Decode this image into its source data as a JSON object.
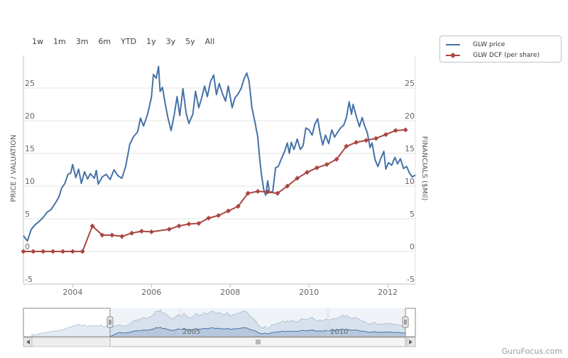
{
  "range_selector": {
    "buttons": [
      "1w",
      "1m",
      "3m",
      "6m",
      "YTD",
      "1y",
      "3y",
      "5y",
      "All"
    ]
  },
  "legend": {
    "items": [
      {
        "label": "GLW price",
        "color": "#4572a7",
        "marker": "none"
      },
      {
        "label": "GLW DCF (per share)",
        "color": "#aa4643",
        "marker": "diamond"
      }
    ]
  },
  "credit": "GuruFocus.com",
  "navigator": {
    "year_labels": [
      "2005",
      "2010"
    ]
  },
  "chart_data": {
    "type": "line",
    "title": "",
    "ylabel": "PRICE / VALUATION",
    "y2label": "FINANCIALS ($Mil)",
    "xlim": [
      2002.75,
      2012.7
    ],
    "ylim": [
      -5,
      30
    ],
    "y_ticks": [
      -5,
      0,
      5,
      10,
      15,
      20,
      25
    ],
    "x_ticks": [
      2004,
      2006,
      2008,
      2010,
      2012
    ],
    "grid": true,
    "legend_position": "top-right",
    "series": [
      {
        "name": "GLW price",
        "color": "#4572a7",
        "points": [
          [
            2002.75,
            2.4
          ],
          [
            2002.85,
            1.6
          ],
          [
            2002.95,
            3.4
          ],
          [
            2003.05,
            4.1
          ],
          [
            2003.15,
            4.6
          ],
          [
            2003.25,
            5.2
          ],
          [
            2003.35,
            6.0
          ],
          [
            2003.45,
            6.4
          ],
          [
            2003.55,
            7.3
          ],
          [
            2003.65,
            8.3
          ],
          [
            2003.72,
            9.7
          ],
          [
            2003.8,
            10.4
          ],
          [
            2003.88,
            11.8
          ],
          [
            2003.95,
            12.0
          ],
          [
            2004.0,
            13.3
          ],
          [
            2004.08,
            11.3
          ],
          [
            2004.15,
            12.6
          ],
          [
            2004.22,
            10.4
          ],
          [
            2004.3,
            12.2
          ],
          [
            2004.38,
            11.1
          ],
          [
            2004.45,
            11.9
          ],
          [
            2004.55,
            11.2
          ],
          [
            2004.6,
            12.4
          ],
          [
            2004.65,
            10.3
          ],
          [
            2004.75,
            11.4
          ],
          [
            2004.85,
            11.8
          ],
          [
            2004.95,
            11.0
          ],
          [
            2005.05,
            12.5
          ],
          [
            2005.15,
            11.6
          ],
          [
            2005.25,
            11.2
          ],
          [
            2005.35,
            13.1
          ],
          [
            2005.45,
            16.4
          ],
          [
            2005.55,
            17.6
          ],
          [
            2005.65,
            18.3
          ],
          [
            2005.72,
            20.4
          ],
          [
            2005.8,
            19.2
          ],
          [
            2005.9,
            21.0
          ],
          [
            2006.0,
            23.6
          ],
          [
            2006.05,
            27.1
          ],
          [
            2006.12,
            26.5
          ],
          [
            2006.18,
            28.3
          ],
          [
            2006.22,
            24.5
          ],
          [
            2006.28,
            25.1
          ],
          [
            2006.35,
            22.6
          ],
          [
            2006.42,
            20.4
          ],
          [
            2006.5,
            18.5
          ],
          [
            2006.58,
            21.0
          ],
          [
            2006.65,
            23.7
          ],
          [
            2006.72,
            20.8
          ],
          [
            2006.8,
            24.9
          ],
          [
            2006.88,
            21.2
          ],
          [
            2006.95,
            19.6
          ],
          [
            2007.05,
            21.0
          ],
          [
            2007.12,
            24.5
          ],
          [
            2007.2,
            22.0
          ],
          [
            2007.28,
            23.6
          ],
          [
            2007.35,
            25.3
          ],
          [
            2007.42,
            23.7
          ],
          [
            2007.5,
            26.0
          ],
          [
            2007.58,
            27.0
          ],
          [
            2007.65,
            24.0
          ],
          [
            2007.72,
            25.7
          ],
          [
            2007.8,
            24.2
          ],
          [
            2007.88,
            23.0
          ],
          [
            2007.95,
            25.3
          ],
          [
            2008.05,
            22.0
          ],
          [
            2008.12,
            23.5
          ],
          [
            2008.2,
            24.1
          ],
          [
            2008.28,
            25.0
          ],
          [
            2008.35,
            26.4
          ],
          [
            2008.42,
            27.3
          ],
          [
            2008.48,
            26.0
          ],
          [
            2008.55,
            22.0
          ],
          [
            2008.62,
            20.0
          ],
          [
            2008.7,
            17.5
          ],
          [
            2008.75,
            14.0
          ],
          [
            2008.8,
            11.5
          ],
          [
            2008.85,
            9.5
          ],
          [
            2008.9,
            8.6
          ],
          [
            2008.95,
            10.8
          ],
          [
            2009.0,
            9.0
          ],
          [
            2009.08,
            9.2
          ],
          [
            2009.15,
            12.8
          ],
          [
            2009.22,
            13.0
          ],
          [
            2009.3,
            14.2
          ],
          [
            2009.38,
            15.3
          ],
          [
            2009.45,
            16.6
          ],
          [
            2009.5,
            15.0
          ],
          [
            2009.55,
            16.7
          ],
          [
            2009.62,
            15.6
          ],
          [
            2009.7,
            17.2
          ],
          [
            2009.78,
            15.6
          ],
          [
            2009.85,
            16.2
          ],
          [
            2009.92,
            18.9
          ],
          [
            2010.0,
            18.6
          ],
          [
            2010.08,
            17.8
          ],
          [
            2010.15,
            19.5
          ],
          [
            2010.22,
            20.3
          ],
          [
            2010.28,
            18.2
          ],
          [
            2010.35,
            16.3
          ],
          [
            2010.42,
            17.8
          ],
          [
            2010.5,
            16.5
          ],
          [
            2010.58,
            18.6
          ],
          [
            2010.65,
            17.5
          ],
          [
            2010.72,
            18.2
          ],
          [
            2010.8,
            18.9
          ],
          [
            2010.88,
            19.3
          ],
          [
            2010.95,
            20.5
          ],
          [
            2011.02,
            22.9
          ],
          [
            2011.08,
            21.0
          ],
          [
            2011.12,
            22.5
          ],
          [
            2011.2,
            20.7
          ],
          [
            2011.28,
            19.1
          ],
          [
            2011.35,
            20.5
          ],
          [
            2011.4,
            19.4
          ],
          [
            2011.48,
            18.2
          ],
          [
            2011.55,
            15.9
          ],
          [
            2011.6,
            16.6
          ],
          [
            2011.68,
            14.0
          ],
          [
            2011.75,
            13.0
          ],
          [
            2011.82,
            14.2
          ],
          [
            2011.9,
            15.3
          ],
          [
            2011.95,
            12.6
          ],
          [
            2012.02,
            13.6
          ],
          [
            2012.1,
            13.2
          ],
          [
            2012.18,
            14.4
          ],
          [
            2012.25,
            13.4
          ],
          [
            2012.32,
            14.2
          ],
          [
            2012.4,
            12.7
          ],
          [
            2012.48,
            13.0
          ],
          [
            2012.55,
            12.0
          ],
          [
            2012.62,
            11.4
          ],
          [
            2012.7,
            11.7
          ]
        ]
      },
      {
        "name": "GLW DCF (per share)",
        "color": "#aa4643",
        "marker": "diamond",
        "points": [
          [
            2002.75,
            0.0
          ],
          [
            2003.0,
            0.0
          ],
          [
            2003.25,
            0.0
          ],
          [
            2003.5,
            0.0
          ],
          [
            2003.75,
            0.0
          ],
          [
            2004.0,
            0.0
          ],
          [
            2004.25,
            0.0
          ],
          [
            2004.5,
            3.9
          ],
          [
            2004.75,
            2.5
          ],
          [
            2005.0,
            2.5
          ],
          [
            2005.25,
            2.3
          ],
          [
            2005.5,
            2.8
          ],
          [
            2005.75,
            3.1
          ],
          [
            2006.0,
            3.0
          ],
          [
            2006.45,
            3.4
          ],
          [
            2006.7,
            3.9
          ],
          [
            2006.95,
            4.2
          ],
          [
            2007.2,
            4.3
          ],
          [
            2007.45,
            5.1
          ],
          [
            2007.7,
            5.5
          ],
          [
            2007.95,
            6.2
          ],
          [
            2008.2,
            6.9
          ],
          [
            2008.45,
            8.9
          ],
          [
            2008.7,
            9.2
          ],
          [
            2008.95,
            9.1
          ],
          [
            2009.2,
            8.9
          ],
          [
            2009.45,
            10.0
          ],
          [
            2009.7,
            11.2
          ],
          [
            2009.95,
            12.1
          ],
          [
            2010.2,
            12.8
          ],
          [
            2010.45,
            13.3
          ],
          [
            2010.7,
            14.1
          ],
          [
            2010.95,
            16.1
          ],
          [
            2011.2,
            16.7
          ],
          [
            2011.45,
            17.0
          ],
          [
            2011.7,
            17.3
          ],
          [
            2011.95,
            17.9
          ],
          [
            2012.2,
            18.5
          ],
          [
            2012.45,
            18.6
          ]
        ]
      }
    ]
  }
}
